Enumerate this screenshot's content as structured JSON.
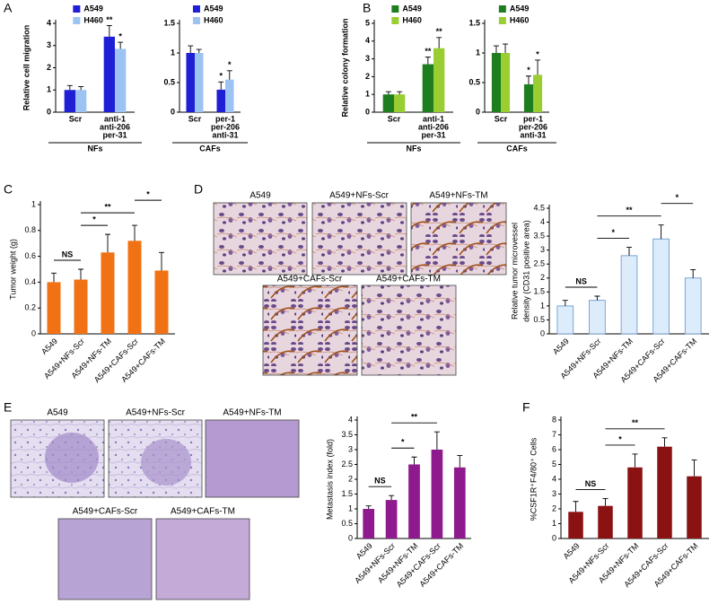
{
  "panel_labels": [
    "A",
    "B",
    "C",
    "D",
    "E",
    "F"
  ],
  "image_panels": {
    "D": [
      "A549",
      "A549+NFs-Scr",
      "A549+NFs-TM",
      "A549+CAFs-Scr",
      "A549+CAFs-TM"
    ],
    "E": [
      "A549",
      "A549+NFs-Scr",
      "A549+NFs-TM",
      "A549+CAFs-Scr",
      "A549+CAFs-TM"
    ]
  },
  "chart_data": [
    {
      "type": "bar",
      "ylabel": "Relative cell migration",
      "group_label": "NFs",
      "categories": [
        [
          "Scr"
        ],
        [
          "anti-1",
          "anti-206",
          "per-31"
        ]
      ],
      "series": [
        {
          "name": "A549",
          "color": "#1f1fd6",
          "values": [
            1,
            3.4
          ],
          "errors": [
            0.2,
            0.5
          ]
        },
        {
          "name": "H460",
          "color": "#9cc3f2",
          "values": [
            1,
            2.85
          ],
          "errors": [
            0.15,
            0.3
          ]
        }
      ],
      "annotations": [
        {
          "series": 0,
          "category": 1,
          "text": "**"
        },
        {
          "series": 1,
          "category": 1,
          "text": "*"
        }
      ],
      "ylim": [
        0,
        4
      ],
      "yticks": [
        0,
        1,
        2,
        3,
        4
      ]
    },
    {
      "type": "bar",
      "group_label": "CAFs",
      "categories": [
        [
          "Scr"
        ],
        [
          "per-1",
          "per-206",
          "anti-31"
        ]
      ],
      "series": [
        {
          "name": "A549",
          "color": "#1f1fd6",
          "values": [
            1,
            0.38
          ],
          "errors": [
            0.12,
            0.13
          ]
        },
        {
          "name": "H460",
          "color": "#9cc3f2",
          "values": [
            1,
            0.55
          ],
          "errors": [
            0.06,
            0.15
          ]
        }
      ],
      "annotations": [
        {
          "series": 0,
          "category": 1,
          "text": "*"
        },
        {
          "series": 1,
          "category": 1,
          "text": "*"
        }
      ],
      "ylim": [
        0,
        1.5
      ],
      "yticks": [
        0,
        0.5,
        1,
        1.5
      ]
    },
    {
      "type": "bar",
      "ylabel": "Relative colony formation",
      "group_label": "NFs",
      "categories": [
        [
          "Scr"
        ],
        [
          "anti-1",
          "anti-206",
          "per-31"
        ]
      ],
      "series": [
        {
          "name": "A549",
          "color": "#1e7d1e",
          "values": [
            1,
            2.7
          ],
          "errors": [
            0.15,
            0.4
          ]
        },
        {
          "name": "H460",
          "color": "#9acd32",
          "values": [
            1,
            3.6
          ],
          "errors": [
            0.15,
            0.6
          ]
        }
      ],
      "annotations": [
        {
          "series": 0,
          "category": 1,
          "text": "**"
        },
        {
          "series": 1,
          "category": 1,
          "text": "**"
        }
      ],
      "ylim": [
        0,
        5
      ],
      "yticks": [
        0,
        1,
        2,
        3,
        4,
        5
      ]
    },
    {
      "type": "bar",
      "group_label": "CAFs",
      "categories": [
        [
          "Scr"
        ],
        [
          "per-1",
          "per-206",
          "anti-31"
        ]
      ],
      "series": [
        {
          "name": "A549",
          "color": "#1e7d1e",
          "values": [
            1,
            0.47
          ],
          "errors": [
            0.12,
            0.14
          ]
        },
        {
          "name": "H460",
          "color": "#9acd32",
          "values": [
            1,
            0.63
          ],
          "errors": [
            0.15,
            0.25
          ]
        }
      ],
      "annotations": [
        {
          "series": 0,
          "category": 1,
          "text": "*"
        },
        {
          "series": 1,
          "category": 1,
          "text": "*"
        }
      ],
      "ylim": [
        0,
        1.5
      ],
      "yticks": [
        0,
        0.5,
        1,
        1.5
      ]
    },
    {
      "type": "bar",
      "ylabel": "Tumor weight (g)",
      "categories": [
        "A549",
        "A549+NFs-Scr",
        "A549+NFs-TM",
        "A549+CAFs-Scr",
        "A549+CAFs-TM"
      ],
      "series": [
        {
          "color": "#f07214",
          "values": [
            0.4,
            0.42,
            0.63,
            0.72,
            0.49
          ],
          "errors": [
            0.07,
            0.08,
            0.14,
            0.12,
            0.14
          ]
        }
      ],
      "brackets": [
        {
          "from": 0,
          "to": 1,
          "text": "NS"
        },
        {
          "from": 1,
          "to": 2,
          "text": "*"
        },
        {
          "from": 1,
          "to": 3,
          "text": "**"
        },
        {
          "from": 3,
          "to": 4,
          "text": "*"
        }
      ],
      "ylim": [
        0,
        1
      ],
      "yticks": [
        0,
        0.2,
        0.4,
        0.6,
        0.8,
        1
      ]
    },
    {
      "type": "bar",
      "ylabel": [
        "Relative tumor microvessel",
        "density (CD31 positive area)"
      ],
      "categories": [
        "A549",
        "A549+NFs-Scr",
        "A549+NFs-TM",
        "A549+CAFs-Scr",
        "A549+CAFs-TM"
      ],
      "series": [
        {
          "color": "#dcecfb",
          "values": [
            1,
            1.2,
            2.8,
            3.4,
            2.0
          ],
          "errors": [
            0.2,
            0.15,
            0.3,
            0.5,
            0.3
          ]
        }
      ],
      "brackets": [
        {
          "from": 0,
          "to": 1,
          "text": "NS"
        },
        {
          "from": 1,
          "to": 2,
          "text": "*"
        },
        {
          "from": 1,
          "to": 3,
          "text": "**"
        },
        {
          "from": 3,
          "to": 4,
          "text": "*"
        }
      ],
      "ylim": [
        0,
        4.5
      ],
      "yticks": [
        0,
        0.5,
        1,
        1.5,
        2,
        2.5,
        3,
        3.5,
        4,
        4.5
      ]
    },
    {
      "type": "bar",
      "ylabel": "Metastasis index (fold)",
      "categories": [
        "A549",
        "A549+NFs-Scr",
        "A549+NFs-TM",
        "A549+CAFs-Scr",
        "A549+CAFs-TM"
      ],
      "series": [
        {
          "color": "#8e1a8e",
          "values": [
            1,
            1.3,
            2.5,
            3.0,
            2.4
          ],
          "errors": [
            0.1,
            0.15,
            0.25,
            0.6,
            0.4
          ]
        }
      ],
      "brackets": [
        {
          "from": 0,
          "to": 1,
          "text": "NS"
        },
        {
          "from": 1,
          "to": 2,
          "text": "*"
        },
        {
          "from": 1,
          "to": 3,
          "text": "**"
        }
      ],
      "ylim": [
        0,
        4
      ],
      "yticks": [
        0,
        0.5,
        1,
        1.5,
        2,
        2.5,
        3,
        3.5,
        4
      ]
    },
    {
      "type": "bar",
      "ylabel": "%CSF1R⁺F4/80⁺ Cells",
      "categories": [
        "A549",
        "A549+NFs-Scr",
        "A549+NFs-TM",
        "A549+CAFs-Scr",
        "A549+CAFs-TM"
      ],
      "series": [
        {
          "color": "#8b1212",
          "values": [
            1.8,
            2.2,
            4.8,
            6.2,
            4.2
          ],
          "errors": [
            0.7,
            0.5,
            0.9,
            0.6,
            1.1
          ]
        }
      ],
      "brackets": [
        {
          "from": 0,
          "to": 1,
          "text": "NS"
        },
        {
          "from": 1,
          "to": 2,
          "text": "*"
        },
        {
          "from": 1,
          "to": 3,
          "text": "**"
        }
      ],
      "ylim": [
        0,
        8
      ],
      "yticks": [
        0,
        1,
        2,
        3,
        4,
        5,
        6,
        7,
        8
      ]
    }
  ]
}
